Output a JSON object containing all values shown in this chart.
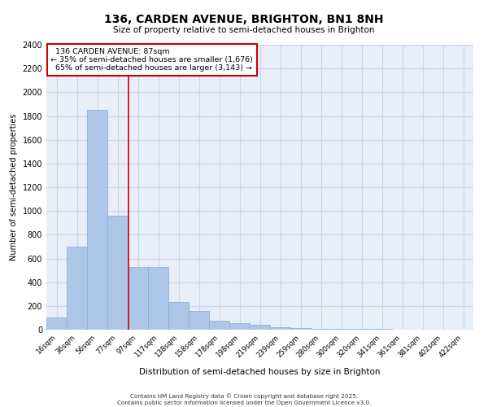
{
  "title": "136, CARDEN AVENUE, BRIGHTON, BN1 8NH",
  "subtitle": "Size of property relative to semi-detached houses in Brighton",
  "xlabel": "Distribution of semi-detached houses by size in Brighton",
  "ylabel": "Number of semi-detached properties",
  "bar_labels": [
    "16sqm",
    "36sqm",
    "56sqm",
    "77sqm",
    "97sqm",
    "117sqm",
    "138sqm",
    "158sqm",
    "178sqm",
    "198sqm",
    "219sqm",
    "239sqm",
    "259sqm",
    "280sqm",
    "300sqm",
    "320sqm",
    "341sqm",
    "361sqm",
    "381sqm",
    "402sqm",
    "422sqm"
  ],
  "bar_values": [
    100,
    700,
    1850,
    960,
    530,
    530,
    230,
    160,
    75,
    55,
    40,
    20,
    15,
    10,
    8,
    5,
    4,
    3,
    2,
    1,
    0
  ],
  "bar_color": "#aec6e8",
  "bar_edge_color": "#7bafd4",
  "property_label": "136 CARDEN AVENUE: 87sqm",
  "pct_smaller": 35,
  "pct_larger": 65,
  "count_smaller": "1,676",
  "count_larger": "3,143",
  "vline_color": "#cc0000",
  "vline_bin_index": 3.55,
  "annotation_box_color": "#cc0000",
  "ylim": [
    0,
    2400
  ],
  "yticks": [
    0,
    200,
    400,
    600,
    800,
    1000,
    1200,
    1400,
    1600,
    1800,
    2000,
    2200,
    2400
  ],
  "grid_color": "#c8d4e8",
  "background_color": "#e8eef8",
  "footer_line1": "Contains HM Land Registry data © Crown copyright and database right 2025.",
  "footer_line2": "Contains public sector information licensed under the Open Government Licence v3.0."
}
